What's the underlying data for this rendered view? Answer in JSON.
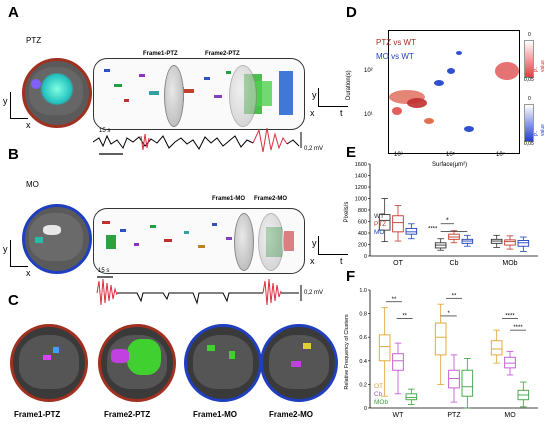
{
  "panels": {
    "A": {
      "letter": "A",
      "condition": "PTZ",
      "frame1_label": "Frame1-PTZ",
      "frame2_label": "Frame2-PTZ",
      "scale_time": "15 s",
      "scale_voltage": "0,2 mV"
    },
    "B": {
      "letter": "B",
      "condition": "MO",
      "frame1_label": "Frame1-MO",
      "frame2_label": "Frame2-MO",
      "scale_time": "15 s",
      "scale_voltage": "0,2 mV"
    },
    "C": {
      "letter": "C",
      "labels": [
        "Frame1-PTZ",
        "Frame2-PTZ",
        "Frame1-MO",
        "Frame2-MO"
      ]
    },
    "D": {
      "letter": "D",
      "legend_ptz": "PTZ vs WT",
      "legend_mo": "MO vs WT",
      "ylabel": "Duration(s)",
      "xlabel": "Surface(μm²)",
      "cbar_top": {
        "label": "P-value",
        "tick_min": "0",
        "tick_max": "0,05"
      },
      "cbar_bottom": {
        "label": "P-value",
        "tick_min": "0",
        "tick_max": "0,05"
      },
      "y_ticks": [
        "10²",
        "10¹"
      ],
      "x_ticks": [
        "10³",
        "10⁵",
        "10⁷"
      ]
    },
    "E": {
      "letter": "E",
      "ylabel": "Pixels/s",
      "y_ticks": [
        "0",
        "200",
        "400",
        "600",
        "800",
        "1000",
        "1200",
        "1400",
        "1600"
      ],
      "categories": [
        "OT",
        "Cb",
        "MOb"
      ],
      "legend": [
        "WT",
        "PTZ",
        "MO"
      ],
      "sig": [
        "*",
        "****"
      ]
    },
    "F": {
      "letter": "F",
      "ylabel": "Relative Frequency of Clusters",
      "y_ticks": [
        "0",
        "0.2",
        "0.4",
        "0.6",
        "0.8",
        "1.0"
      ],
      "categories": [
        "WT",
        "PTZ",
        "MO"
      ],
      "legend": [
        "OT",
        "Cb",
        "MOb"
      ],
      "sig": [
        "**",
        "**",
        "**",
        "*",
        "****",
        "****"
      ]
    }
  },
  "axes_labels": {
    "y": "y",
    "x": "x",
    "t": "t"
  },
  "colors": {
    "ptz": "#c0392b",
    "mo": "#1f3fbf",
    "wt": "#333333",
    "ot": "#e0a030",
    "cb": "#c050d0",
    "mob": "#3aa040"
  },
  "chart_data": [
    {
      "type": "box",
      "panel": "E",
      "categories": [
        "OT",
        "Cb",
        "MOb"
      ],
      "ylabel": "Pixels/s",
      "ylim": [
        0,
        1600
      ],
      "series": [
        {
          "name": "WT",
          "boxes": [
            {
              "min": 250,
              "q1": 450,
              "median": 620,
              "q3": 720,
              "max": 1000
            },
            {
              "min": 100,
              "q1": 140,
              "median": 190,
              "q3": 230,
              "max": 300
            },
            {
              "min": 150,
              "q1": 220,
              "median": 260,
              "q3": 290,
              "max": 360
            }
          ]
        },
        {
          "name": "PTZ",
          "boxes": [
            {
              "min": 260,
              "q1": 420,
              "median": 580,
              "q3": 700,
              "max": 880
            },
            {
              "min": 230,
              "q1": 290,
              "median": 330,
              "q3": 380,
              "max": 440
            },
            {
              "min": 120,
              "q1": 190,
              "median": 250,
              "q3": 280,
              "max": 350
            }
          ]
        },
        {
          "name": "MO",
          "boxes": [
            {
              "min": 300,
              "q1": 380,
              "median": 420,
              "q3": 480,
              "max": 560
            },
            {
              "min": 170,
              "q1": 220,
              "median": 260,
              "q3": 290,
              "max": 360
            },
            {
              "min": 80,
              "q1": 170,
              "median": 230,
              "q3": 270,
              "max": 330
            }
          ]
        }
      ]
    },
    {
      "type": "box",
      "panel": "F",
      "categories": [
        "WT",
        "PTZ",
        "MO"
      ],
      "ylabel": "Relative Frequency of Clusters",
      "ylim": [
        0,
        1.0
      ],
      "series": [
        {
          "name": "OT",
          "boxes": [
            {
              "min": 0.1,
              "q1": 0.4,
              "median": 0.52,
              "q3": 0.62,
              "max": 0.85
            },
            {
              "min": 0.2,
              "q1": 0.45,
              "median": 0.6,
              "q3": 0.72,
              "max": 0.88
            },
            {
              "min": 0.38,
              "q1": 0.45,
              "median": 0.5,
              "q3": 0.57,
              "max": 0.66
            }
          ]
        },
        {
          "name": "Cb",
          "boxes": [
            {
              "min": 0.12,
              "q1": 0.32,
              "median": 0.4,
              "q3": 0.46,
              "max": 0.55
            },
            {
              "min": 0.05,
              "q1": 0.17,
              "median": 0.25,
              "q3": 0.32,
              "max": 0.45
            },
            {
              "min": 0.28,
              "q1": 0.34,
              "median": 0.38,
              "q3": 0.43,
              "max": 0.48
            }
          ]
        },
        {
          "name": "MOb",
          "boxes": [
            {
              "min": 0.03,
              "q1": 0.07,
              "median": 0.09,
              "q3": 0.12,
              "max": 0.16
            },
            {
              "min": 0.0,
              "q1": 0.1,
              "median": 0.18,
              "q3": 0.32,
              "max": 0.42
            },
            {
              "min": 0.01,
              "q1": 0.07,
              "median": 0.11,
              "q3": 0.15,
              "max": 0.22
            }
          ]
        }
      ]
    }
  ]
}
